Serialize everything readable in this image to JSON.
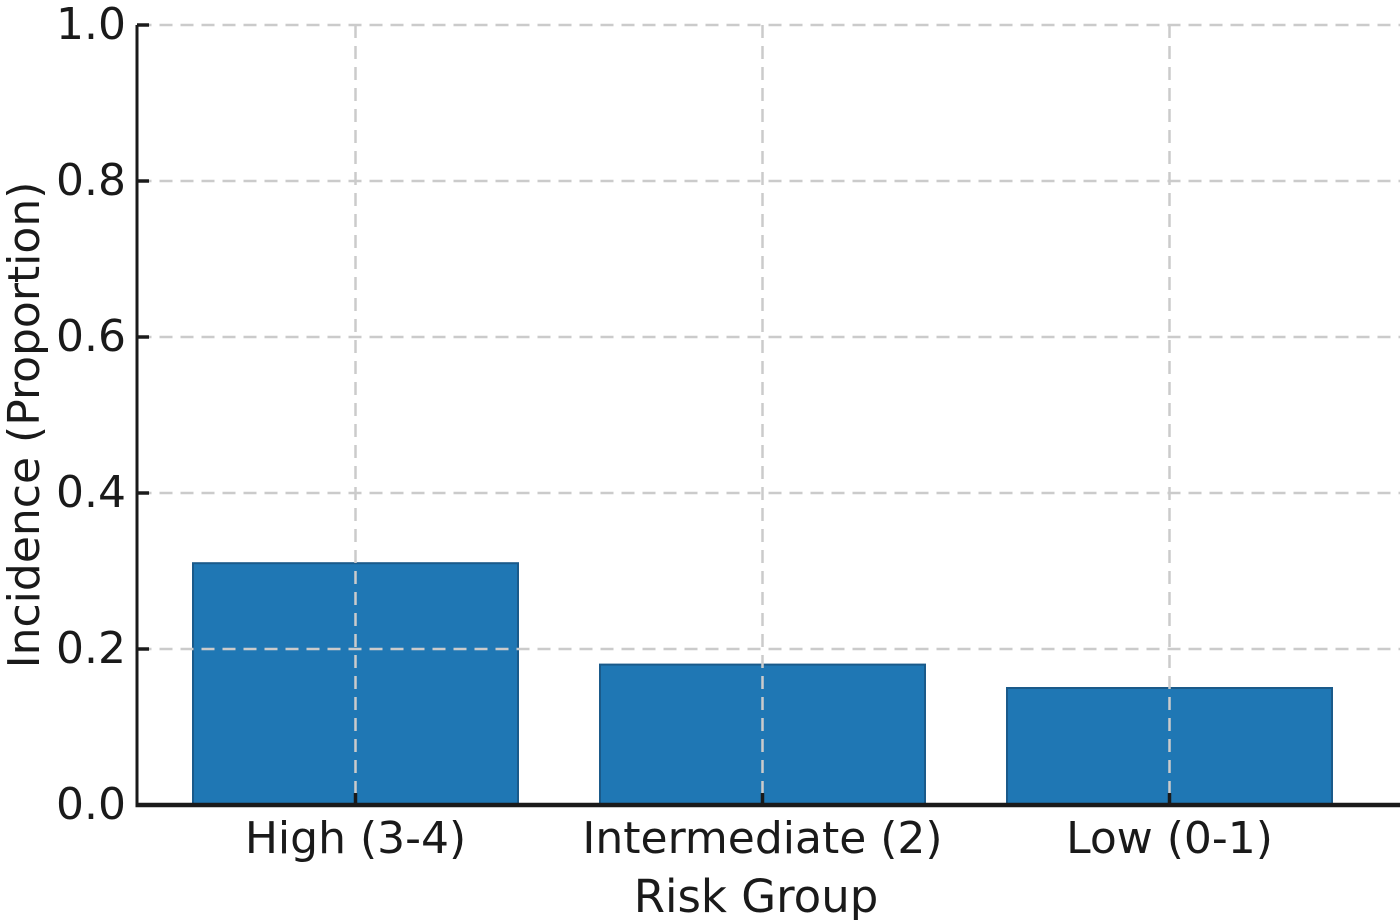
{
  "chart_data": {
    "type": "bar",
    "xlabel": "Risk Group",
    "ylabel": "Incidence (Proportion)",
    "categories": [
      "High (3-4)",
      "Intermediate (2)",
      "Low (0-1)"
    ],
    "values": [
      0.31,
      0.18,
      0.15
    ],
    "ylim": [
      0.0,
      1.0
    ],
    "yticks": [
      "0.0",
      "0.2",
      "0.4",
      "0.6",
      "0.8",
      "1.0"
    ],
    "grid": {
      "style": "dashed",
      "axes": "both",
      "color": "#cbcbcb",
      "drawn_above_bars": true
    },
    "bar_color": "#1f77b4",
    "bar_edge_color": "#1a5a8a",
    "axis_color": "#1a1a1a",
    "background": "#ffffff"
  }
}
